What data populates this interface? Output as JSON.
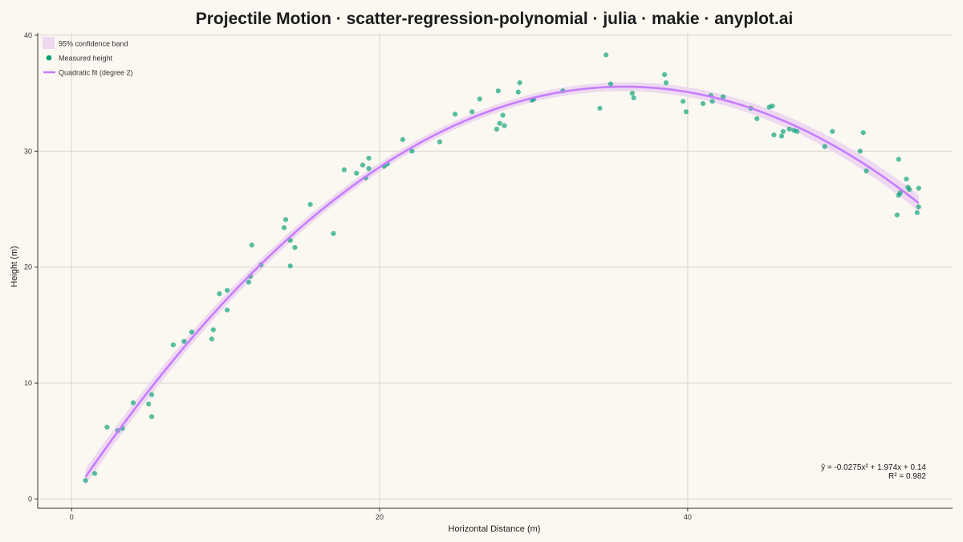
{
  "chart_data": {
    "type": "scatter",
    "title": "Projectile Motion · scatter-regression-polynomial · julia · makie · anyplot.ai",
    "xlabel": "Horizontal Distance (m)",
    "ylabel": "Height (m)",
    "xlim": [
      -2.2,
      57.2
    ],
    "ylim": [
      -0.8,
      40.2
    ],
    "xticks": [
      0,
      20,
      40
    ],
    "yticks": [
      0,
      10,
      20,
      30,
      40
    ],
    "grid": true,
    "legend_position": "top-left",
    "colors": {
      "background": "#FAF8F1",
      "points": "#009E73",
      "fit": "#C77DFF",
      "band": "#EBD4F0"
    },
    "series": [
      {
        "name": "Measured height",
        "kind": "scatter",
        "x": [
          0.9,
          1.5,
          2.3,
          3.0,
          3.3,
          4.0,
          5.0,
          5.2,
          5.2,
          6.6,
          7.3,
          7.8,
          9.1,
          9.2,
          9.6,
          10.1,
          10.1,
          11.5,
          11.6,
          11.7,
          12.3,
          13.8,
          13.9,
          14.2,
          14.2,
          14.5,
          15.5,
          17.0,
          17.7,
          18.5,
          18.9,
          19.1,
          19.3,
          19.3,
          20.3,
          20.5,
          21.5,
          22.1,
          23.9,
          24.9,
          26.0,
          26.5,
          27.6,
          27.7,
          27.8,
          28.0,
          28.1,
          29.0,
          29.1,
          29.9,
          30.0,
          31.9,
          34.3,
          34.7,
          35.0,
          36.4,
          36.5,
          38.5,
          38.6,
          39.7,
          39.9,
          41.0,
          41.5,
          41.6,
          42.3,
          44.1,
          44.5,
          45.3,
          45.5,
          45.6,
          46.1,
          46.2,
          46.6,
          46.9,
          47.1,
          48.9,
          49.4,
          51.2,
          51.4,
          51.6,
          53.6,
          53.7,
          53.7,
          53.8,
          54.2,
          54.3,
          54.4,
          54.9,
          55.0,
          55.0
        ],
        "y": [
          1.6,
          2.2,
          6.2,
          5.9,
          6.1,
          8.3,
          8.2,
          9.0,
          7.1,
          13.3,
          13.6,
          14.4,
          13.8,
          14.6,
          17.7,
          18.0,
          16.3,
          18.7,
          19.2,
          21.9,
          20.2,
          23.4,
          24.1,
          22.3,
          20.1,
          21.7,
          25.4,
          22.9,
          28.4,
          28.1,
          28.8,
          27.7,
          29.4,
          28.5,
          28.7,
          28.9,
          31.0,
          30.0,
          30.8,
          33.2,
          33.4,
          34.5,
          31.9,
          35.2,
          32.4,
          33.1,
          32.2,
          35.1,
          35.9,
          34.4,
          34.5,
          35.2,
          33.7,
          38.3,
          35.8,
          35.0,
          34.6,
          36.6,
          35.9,
          34.3,
          33.4,
          34.1,
          34.8,
          34.3,
          34.7,
          33.7,
          32.8,
          33.8,
          33.9,
          31.4,
          31.3,
          31.7,
          31.9,
          31.8,
          31.7,
          30.4,
          31.7,
          30.0,
          31.6,
          28.3,
          24.5,
          26.2,
          29.3,
          26.4,
          27.6,
          26.9,
          26.7,
          24.7,
          25.2,
          26.8
        ]
      },
      {
        "name": "Quadratic fit (degree 2)",
        "kind": "line",
        "model": {
          "a": -0.0275,
          "b": 1.974,
          "c": 0.14
        },
        "x_range": [
          0.9,
          55.0
        ]
      },
      {
        "name": "95% confidence band",
        "kind": "band",
        "half_width_ends": 0.7,
        "half_width_middle": 0.35
      }
    ],
    "annotations": [
      "ŷ = -0.0275x² + 1.974x + 0.14",
      "R² = 0.982"
    ]
  }
}
